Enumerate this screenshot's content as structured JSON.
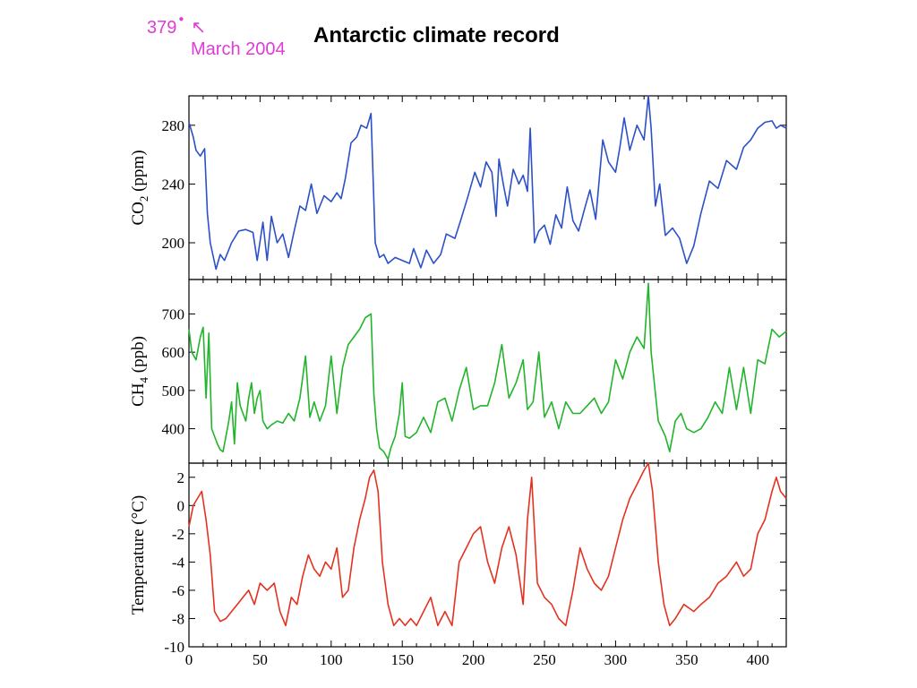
{
  "header": {
    "title": "Antarctic climate record",
    "annotation_value": "379",
    "annotation_date": "March 2004",
    "annotation_color": "#e03ad8"
  },
  "chart_data": [
    {
      "type": "line",
      "ylabel_main": "CO",
      "ylabel_sub": "2",
      "ylabel_unit": " (ppm)",
      "color": "#2c50c8",
      "xlim": [
        0,
        420
      ],
      "ylim": [
        175,
        300
      ],
      "yticks": [
        200,
        240,
        280
      ],
      "x": [
        0,
        3,
        5,
        8,
        11,
        13,
        15,
        19,
        22,
        25,
        30,
        35,
        40,
        45,
        48,
        52,
        55,
        58,
        62,
        66,
        70,
        74,
        78,
        82,
        86,
        90,
        95,
        100,
        104,
        107,
        110,
        114,
        118,
        121,
        125,
        128,
        131,
        134,
        137,
        140,
        145,
        150,
        155,
        158,
        163,
        167,
        172,
        177,
        181,
        187,
        191,
        196,
        201,
        205,
        209,
        213,
        216,
        218,
        221,
        224,
        228,
        232,
        235,
        238,
        240,
        243,
        246,
        250,
        254,
        258,
        262,
        266,
        270,
        274,
        279,
        282,
        286,
        291,
        295,
        300,
        303,
        306,
        310,
        315,
        320,
        323,
        325,
        328,
        331,
        335,
        340,
        345,
        350,
        355,
        360,
        366,
        372,
        378,
        385,
        390,
        395,
        400,
        405,
        410,
        413,
        416,
        420
      ],
      "y": [
        282,
        272,
        263,
        259,
        264,
        220,
        200,
        182,
        192,
        188,
        200,
        208,
        209,
        207,
        188,
        214,
        188,
        218,
        200,
        206,
        190,
        208,
        225,
        222,
        240,
        220,
        232,
        228,
        234,
        230,
        244,
        268,
        272,
        280,
        278,
        288,
        200,
        190,
        192,
        186,
        190,
        188,
        186,
        196,
        183,
        195,
        186,
        192,
        206,
        203,
        215,
        231,
        248,
        238,
        255,
        248,
        218,
        257,
        240,
        225,
        250,
        240,
        246,
        235,
        278,
        200,
        208,
        212,
        199,
        219,
        210,
        238,
        215,
        208,
        226,
        236,
        216,
        270,
        255,
        248,
        265,
        285,
        263,
        280,
        270,
        300,
        278,
        225,
        240,
        205,
        210,
        203,
        186,
        198,
        220,
        242,
        237,
        256,
        250,
        265,
        270,
        278,
        282,
        283,
        278,
        280,
        278
      ]
    },
    {
      "type": "line",
      "ylabel_main": "CH",
      "ylabel_sub": "4",
      "ylabel_unit": " (ppb)",
      "color": "#22b42a",
      "xlim": [
        0,
        420
      ],
      "ylim": [
        310,
        790
      ],
      "yticks": [
        400,
        500,
        600,
        700
      ],
      "x": [
        0,
        2,
        5,
        8,
        10,
        12,
        14,
        16,
        18,
        20,
        22,
        24,
        26,
        28,
        30,
        32,
        34,
        36,
        38,
        40,
        42,
        44,
        46,
        48,
        50,
        52,
        55,
        58,
        62,
        66,
        70,
        74,
        78,
        82,
        85,
        88,
        92,
        96,
        100,
        104,
        108,
        112,
        116,
        120,
        124,
        128,
        130,
        132,
        134,
        137,
        140,
        142,
        145,
        148,
        150,
        152,
        155,
        160,
        165,
        170,
        175,
        180,
        185,
        190,
        195,
        200,
        205,
        210,
        215,
        220,
        225,
        230,
        235,
        238,
        242,
        246,
        250,
        255,
        260,
        265,
        270,
        275,
        280,
        285,
        290,
        295,
        300,
        305,
        310,
        315,
        320,
        323,
        325,
        330,
        335,
        338,
        342,
        346,
        350,
        355,
        360,
        365,
        370,
        375,
        380,
        385,
        390,
        395,
        400,
        405,
        410,
        415,
        420
      ],
      "y": [
        660,
        600,
        580,
        640,
        665,
        480,
        650,
        400,
        380,
        360,
        345,
        340,
        380,
        420,
        470,
        360,
        520,
        460,
        440,
        420,
        480,
        520,
        440,
        480,
        500,
        420,
        400,
        410,
        420,
        415,
        440,
        420,
        480,
        590,
        430,
        470,
        420,
        460,
        590,
        440,
        560,
        620,
        640,
        660,
        690,
        700,
        490,
        400,
        350,
        340,
        320,
        350,
        380,
        440,
        520,
        380,
        375,
        390,
        430,
        390,
        470,
        480,
        420,
        500,
        560,
        450,
        460,
        460,
        520,
        620,
        480,
        520,
        580,
        450,
        470,
        600,
        430,
        470,
        400,
        470,
        440,
        440,
        460,
        480,
        440,
        470,
        580,
        530,
        600,
        640,
        610,
        780,
        600,
        420,
        380,
        340,
        420,
        440,
        400,
        390,
        400,
        430,
        470,
        440,
        560,
        450,
        560,
        440,
        580,
        570,
        660,
        640,
        655
      ]
    },
    {
      "type": "line",
      "ylabel_main": "Temperature (°C)",
      "color": "#e43221",
      "xlim": [
        0,
        420
      ],
      "ylim": [
        -10,
        3
      ],
      "yticks": [
        -10,
        -8,
        -6,
        -4,
        -2,
        0,
        2
      ],
      "xticks": [
        0,
        50,
        100,
        150,
        200,
        250,
        300,
        350,
        400
      ],
      "x": [
        0,
        3,
        6,
        9,
        12,
        15,
        18,
        22,
        26,
        30,
        34,
        38,
        42,
        46,
        50,
        55,
        60,
        64,
        68,
        72,
        76,
        80,
        84,
        88,
        92,
        96,
        100,
        104,
        108,
        112,
        116,
        120,
        124,
        127,
        130,
        133,
        136,
        140,
        144,
        148,
        152,
        156,
        160,
        165,
        170,
        175,
        180,
        185,
        190,
        195,
        200,
        205,
        210,
        215,
        220,
        225,
        230,
        235,
        238,
        241,
        245,
        250,
        255,
        260,
        265,
        270,
        275,
        280,
        285,
        290,
        295,
        300,
        305,
        310,
        315,
        320,
        323,
        326,
        330,
        334,
        338,
        342,
        348,
        355,
        360,
        366,
        372,
        378,
        385,
        390,
        395,
        400,
        405,
        410,
        413,
        416,
        420
      ],
      "y": [
        -1.5,
        0,
        0.5,
        1.0,
        -1.0,
        -3.5,
        -7.5,
        -8.2,
        -8.0,
        -7.5,
        -7.0,
        -6.5,
        -6.0,
        -7.0,
        -5.5,
        -6.0,
        -5.5,
        -7.5,
        -8.5,
        -6.5,
        -7.0,
        -5.0,
        -3.5,
        -4.5,
        -5.0,
        -4.0,
        -4.5,
        -3.0,
        -6.5,
        -6.0,
        -3.0,
        -1.0,
        0.5,
        2.0,
        2.5,
        1.0,
        -4.0,
        -7.0,
        -8.5,
        -8.0,
        -8.5,
        -8.0,
        -8.5,
        -7.5,
        -6.5,
        -8.5,
        -7.5,
        -8.5,
        -4.0,
        -3.0,
        -2.0,
        -1.5,
        -4.0,
        -5.5,
        -3.0,
        -1.5,
        -3.5,
        -7.0,
        -1.0,
        2.0,
        -5.5,
        -6.5,
        -7.0,
        -8.0,
        -8.5,
        -6.0,
        -3.0,
        -4.5,
        -5.5,
        -6.0,
        -5.0,
        -3.0,
        -1.0,
        0.5,
        1.5,
        2.5,
        3.0,
        1.0,
        -4.0,
        -7.0,
        -8.5,
        -8.0,
        -7.0,
        -7.5,
        -7.0,
        -6.5,
        -5.5,
        -5.0,
        -4.0,
        -5.0,
        -4.5,
        -2.0,
        -1.0,
        1.0,
        2.0,
        1.0,
        0.5
      ]
    }
  ]
}
